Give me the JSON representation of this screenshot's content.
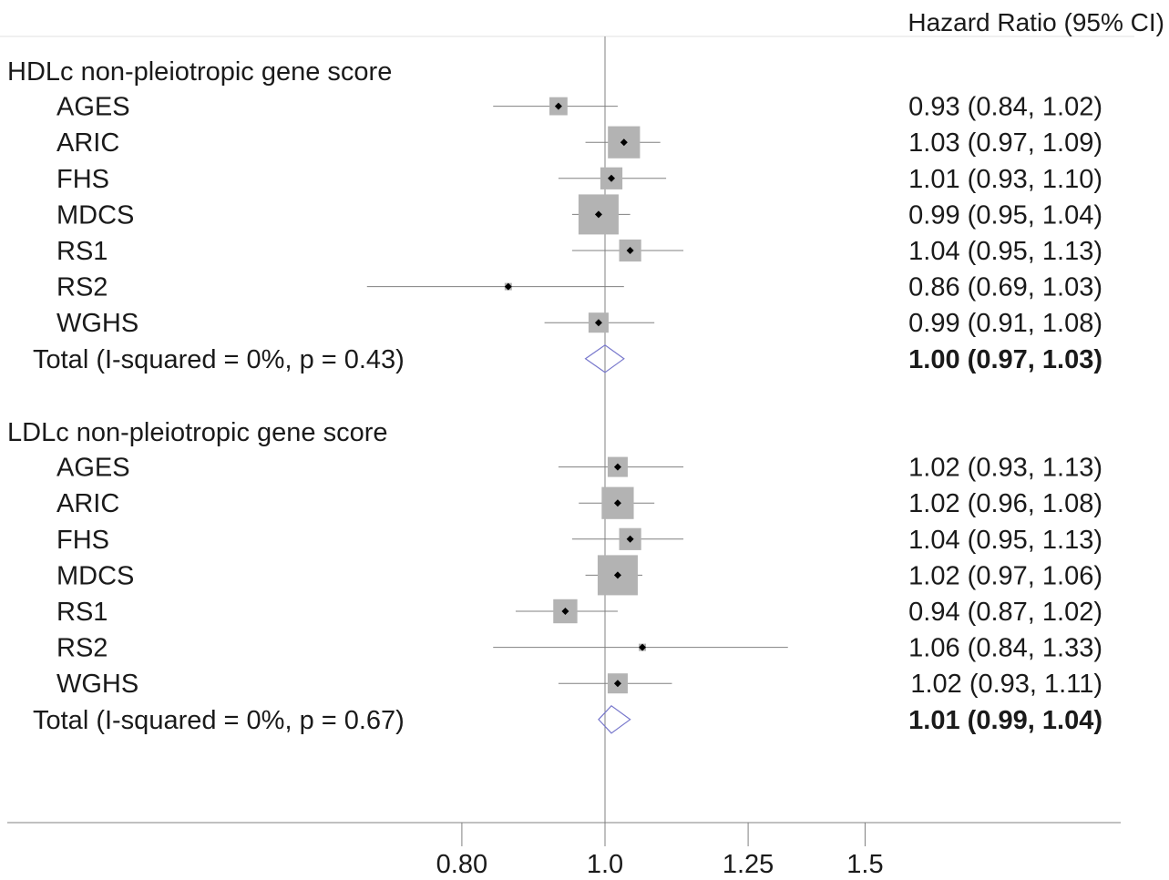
{
  "chart_data": {
    "type": "forest",
    "column_header": "Hazard Ratio (95% CI)",
    "x_ticks": [
      {
        "value": 0.8,
        "label": "0.80"
      },
      {
        "value": 1.0,
        "label": "1.0"
      },
      {
        "value": 1.25,
        "label": "1.25"
      },
      {
        "value": 1.5,
        "label": "1.5"
      }
    ],
    "reference_line": 1.0,
    "x_scale": "log",
    "colors": {
      "box": "#b3b3b3",
      "point": "#000000",
      "ci_line": "#808080",
      "diamond": "#7777cc",
      "axis": "#808080"
    },
    "groups": [
      {
        "title": "HDLc non-pleiotropic gene score",
        "studies": [
          {
            "name": "AGES",
            "hr": 0.93,
            "lo": 0.84,
            "hi": 1.02,
            "text": "0.93 (0.84, 1.02)",
            "weight": 0.45
          },
          {
            "name": "ARIC",
            "hr": 1.03,
            "lo": 0.97,
            "hi": 1.09,
            "text": "1.03 (0.97, 1.09)",
            "weight": 0.8
          },
          {
            "name": "FHS",
            "hr": 1.01,
            "lo": 0.93,
            "hi": 1.1,
            "text": "1.01 (0.93, 1.10)",
            "weight": 0.55
          },
          {
            "name": "MDCS",
            "hr": 0.99,
            "lo": 0.95,
            "hi": 1.04,
            "text": "0.99 (0.95, 1.04)",
            "weight": 1.0
          },
          {
            "name": "RS1",
            "hr": 1.04,
            "lo": 0.95,
            "hi": 1.13,
            "text": "1.04 (0.95, 1.13)",
            "weight": 0.55
          },
          {
            "name": "RS2",
            "hr": 0.86,
            "lo": 0.69,
            "hi": 1.03,
            "text": "0.86 (0.69, 1.03)",
            "weight": 0.15
          },
          {
            "name": "WGHS",
            "hr": 0.99,
            "lo": 0.91,
            "hi": 1.08,
            "text": "0.99 (0.91, 1.08)",
            "weight": 0.5
          }
        ],
        "total": {
          "label": "Total (I-squared = 0%, p = 0.43)",
          "hr": 1.0,
          "lo": 0.97,
          "hi": 1.03,
          "text": "1.00 (0.97, 1.03)"
        }
      },
      {
        "title": "LDLc non-pleiotropic gene score",
        "studies": [
          {
            "name": "AGES",
            "hr": 1.02,
            "lo": 0.93,
            "hi": 1.13,
            "text": "1.02 (0.93, 1.13)",
            "weight": 0.5
          },
          {
            "name": "ARIC",
            "hr": 1.02,
            "lo": 0.96,
            "hi": 1.08,
            "text": "1.02 (0.96, 1.08)",
            "weight": 0.8
          },
          {
            "name": "FHS",
            "hr": 1.04,
            "lo": 0.95,
            "hi": 1.13,
            "text": "1.04 (0.95, 1.13)",
            "weight": 0.55
          },
          {
            "name": "MDCS",
            "hr": 1.02,
            "lo": 0.97,
            "hi": 1.06,
            "text": "1.02 (0.97, 1.06)",
            "weight": 1.0
          },
          {
            "name": "RS1",
            "hr": 0.94,
            "lo": 0.87,
            "hi": 1.02,
            "text": "0.94 (0.87, 1.02)",
            "weight": 0.6
          },
          {
            "name": "RS2",
            "hr": 1.06,
            "lo": 0.84,
            "hi": 1.33,
            "text": "1.06 (0.84, 1.33)",
            "weight": 0.15
          },
          {
            "name": "WGHS",
            "hr": 1.02,
            "lo": 0.93,
            "hi": 1.11,
            "text": "1.02 (0.93, 1.11)",
            "weight": 0.5
          }
        ],
        "total": {
          "label": "Total (I-squared = 0%, p = 0.67)",
          "hr": 1.01,
          "lo": 0.99,
          "hi": 1.04,
          "text": "1.01 (0.99, 1.04)"
        }
      }
    ]
  }
}
